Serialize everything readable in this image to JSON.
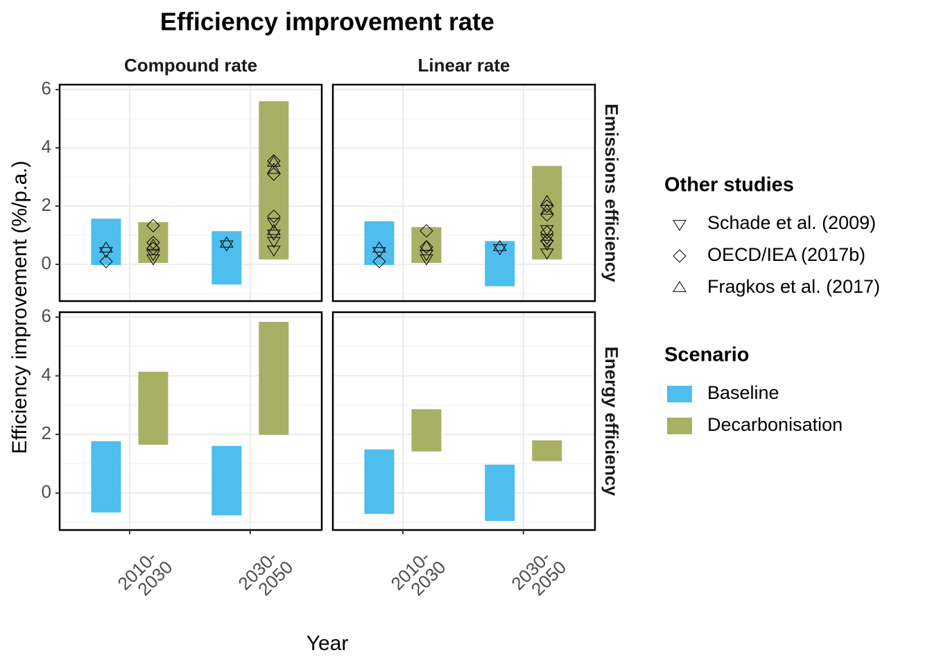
{
  "chart_data": {
    "type": "floating-bar",
    "title": "Efficiency improvement rate",
    "xlabel": "Year",
    "ylabel": "Efficiency improvement (%/p.a.)",
    "columns": [
      "Compound rate",
      "Linear rate"
    ],
    "rows": [
      "Emissions efficiency",
      "Energy efficiency"
    ],
    "categories": [
      [
        "2010-",
        "2030"
      ],
      [
        "2030-",
        "2050"
      ]
    ],
    "ylim": [
      -1.26,
      6.17
    ],
    "yticks": [
      0,
      2,
      4,
      6
    ],
    "minor_yticks": [
      -1,
      1,
      3,
      5
    ],
    "grid": true,
    "series": [
      {
        "name": "Baseline",
        "color": "#4dbeee"
      },
      {
        "name": "Decarbonisation",
        "color": "#a8b065"
      }
    ],
    "studies_title": "Other studies",
    "scenario_title": "Scenario",
    "studies": [
      {
        "name": "Schade et al. (2009)",
        "shape": "triangle-down"
      },
      {
        "name": "OECD/IEA (2017b)",
        "shape": "diamond"
      },
      {
        "name": "Fragkos et al. (2017)",
        "shape": "triangle-up"
      }
    ],
    "panels": [
      {
        "bars": [
          [
            [
              -0.02,
              1.57
            ],
            [
              -0.69,
              1.14
            ]
          ],
          [
            [
              0.05,
              1.45
            ],
            [
              0.17,
              5.6
            ]
          ]
        ],
        "points": [
          [
            [
              [
                0.45
              ],
              [
                0.68
              ]
            ],
            [
              [
                0.2,
                0.35
              ],
              [
                1.45,
                1.05,
                0.8,
                0.5
              ]
            ]
          ],
          [
            [
              [
                0.1
              ],
              []
            ],
            [
              [
                1.33,
                0.75,
                0.55
              ],
              [
                3.55,
                3.1,
                1.65
              ]
            ]
          ],
          [
            [
              [
                0.55
              ],
              [
                0.72
              ]
            ],
            [
              [
                0.65
              ],
              [
                3.5,
                3.25,
                1.15
              ]
            ]
          ]
        ]
      },
      {
        "bars": [
          [
            [
              -0.02,
              1.48
            ],
            [
              -0.75,
              0.8
            ]
          ],
          [
            [
              0.05,
              1.28
            ],
            [
              0.17,
              3.38
            ]
          ]
        ],
        "points": [
          [
            [
              [
                0.45
              ],
              [
                0.55
              ]
            ],
            [
              [
                0.2,
                0.35
              ],
              [
                1.2,
                0.9,
                0.7,
                0.4
              ]
            ]
          ],
          [
            [
              [
                0.1
              ],
              []
            ],
            [
              [
                1.15,
                0.6
              ],
              [
                2.0,
                1.7,
                1.1,
                0.8
              ]
            ]
          ],
          [
            [
              [
                0.55
              ],
              [
                0.6
              ]
            ],
            [
              [
                0.6
              ],
              [
                2.15,
                1.85
              ]
            ]
          ]
        ]
      },
      {
        "bars": [
          [
            [
              -0.66,
              1.77
            ],
            [
              -0.76,
              1.61
            ]
          ],
          [
            [
              1.65,
              4.14
            ],
            [
              1.99,
              5.84
            ]
          ]
        ]
      },
      {
        "bars": [
          [
            [
              -0.71,
              1.49
            ],
            [
              -0.95,
              0.97
            ]
          ],
          [
            [
              1.42,
              2.86
            ],
            [
              1.09,
              1.8
            ]
          ]
        ]
      }
    ]
  }
}
